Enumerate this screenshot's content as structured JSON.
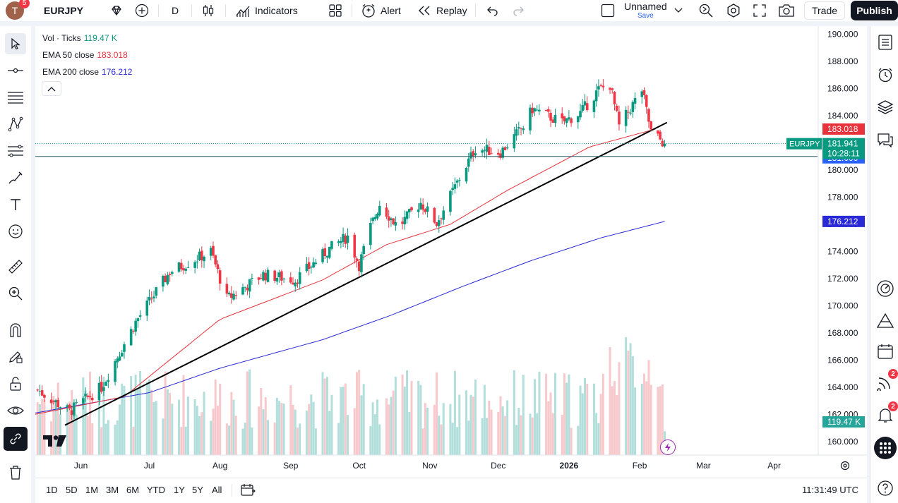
{
  "toolbar": {
    "avatar_letter": "T",
    "avatar_badge": "5",
    "symbol": "EURJPY",
    "interval": "D",
    "indicators_label": "Indicators",
    "alert_label": "Alert",
    "replay_label": "Replay",
    "layout_name": "Unnamed",
    "layout_save": "Save",
    "trade_label": "Trade",
    "publish_label": "Publish"
  },
  "legend": {
    "vol_label": "Vol · Ticks",
    "vol_value": "119.47 K",
    "ema50_label": "EMA 50 close",
    "ema50_value": "183.018",
    "ema200_label": "EMA 200 close",
    "ema200_value": "176.212"
  },
  "price_scale": {
    "ticks": [
      "190.000",
      "188.000",
      "186.000",
      "184.000",
      "182.000",
      "180.000",
      "178.000",
      "176.000",
      "174.000",
      "172.000",
      "170.000",
      "168.000",
      "166.000",
      "164.000",
      "162.000",
      "160.000"
    ],
    "symbol_tag": "EURJPY",
    "last_price": "181.941",
    "countdown": "10:28:11",
    "crosshair_price": "181.000",
    "ema50_tag": "183.018",
    "ema200_tag": "176.212",
    "volume_tag": "119.47 K"
  },
  "time_scale": {
    "labels": [
      "Jun",
      "Jul",
      "Aug",
      "Sep",
      "Oct",
      "Nov",
      "Dec",
      "2026",
      "Feb",
      "Mar",
      "Apr"
    ]
  },
  "bottom": {
    "ranges": [
      "1D",
      "5D",
      "1M",
      "3M",
      "6M",
      "YTD",
      "1Y",
      "5Y",
      "All"
    ],
    "clock": "11:31:49 UTC"
  },
  "rightbar": {
    "badge_streams": "2",
    "badge_alerts": "2"
  },
  "colors": {
    "up": "#089981",
    "down": "#f23645",
    "ema50": "#e8333c",
    "ema200": "#2929d6",
    "trendline": "#000000",
    "vol_up": "#b2dfdb",
    "vol_down": "#f7c9cc",
    "crosshair_tag": "#2962ff"
  },
  "chart_data": {
    "type": "candlestick",
    "symbol": "EURJPY",
    "interval": "D",
    "x_range": [
      "2025-05-12",
      "2026-04-20"
    ],
    "y_range": [
      159,
      190.5
    ],
    "last_price": 181.941,
    "crosshair_price": 181.0,
    "ohlc_keypoints": [
      [
        "2025-05-13",
        163.8
      ],
      [
        "2025-05-27",
        162.2
      ],
      [
        "2025-06-10",
        164.0
      ],
      [
        "2025-06-25",
        168.8
      ],
      [
        "2025-07-10",
        172.5
      ],
      [
        "2025-07-28",
        174.0
      ],
      [
        "2025-08-04",
        170.5
      ],
      [
        "2025-08-20",
        172.3
      ],
      [
        "2025-09-03",
        171.9
      ],
      [
        "2025-09-18",
        174.2
      ],
      [
        "2025-09-26",
        175.1
      ],
      [
        "2025-10-01",
        173.0
      ],
      [
        "2025-10-06",
        175.8
      ],
      [
        "2025-10-10",
        177.5
      ],
      [
        "2025-10-18",
        175.8
      ],
      [
        "2025-10-28",
        177.6
      ],
      [
        "2025-11-04",
        176.1
      ],
      [
        "2025-11-14",
        179.4
      ],
      [
        "2025-11-21",
        181.6
      ],
      [
        "2025-12-02",
        181.3
      ],
      [
        "2025-12-12",
        183.2
      ],
      [
        "2025-12-16",
        184.5
      ],
      [
        "2025-12-29",
        183.5
      ],
      [
        "2026-01-06",
        184.2
      ],
      [
        "2026-01-14",
        185.9
      ],
      [
        "2026-01-19",
        186.3
      ],
      [
        "2026-01-23",
        183.2
      ],
      [
        "2026-02-02",
        185.9
      ],
      [
        "2026-02-06",
        182.8
      ],
      [
        "2026-02-12",
        181.941
      ]
    ],
    "ema50_keypoints": [
      [
        "2025-05-12",
        162.0
      ],
      [
        "2025-06-20",
        163.3
      ],
      [
        "2025-08-01",
        169.0
      ],
      [
        "2025-09-15",
        171.9
      ],
      [
        "2025-10-13",
        174.5
      ],
      [
        "2025-11-10",
        176.0
      ],
      [
        "2025-12-05",
        178.5
      ],
      [
        "2026-01-10",
        181.7
      ],
      [
        "2026-02-08",
        183.018
      ]
    ],
    "ema200_keypoints": [
      [
        "2025-05-12",
        162.1
      ],
      [
        "2025-07-01",
        163.6
      ],
      [
        "2025-08-01",
        165.4
      ],
      [
        "2025-09-15",
        167.5
      ],
      [
        "2025-10-15",
        169.3
      ],
      [
        "2025-11-15",
        171.4
      ],
      [
        "2025-12-15",
        173.3
      ],
      [
        "2026-01-15",
        175.0
      ],
      [
        "2026-02-12",
        176.212
      ]
    ],
    "trendline": [
      [
        "2025-05-25",
        161.2
      ],
      [
        "2026-02-13",
        183.5
      ]
    ],
    "volume_last": 119.47,
    "volume_unit": "K ticks"
  }
}
